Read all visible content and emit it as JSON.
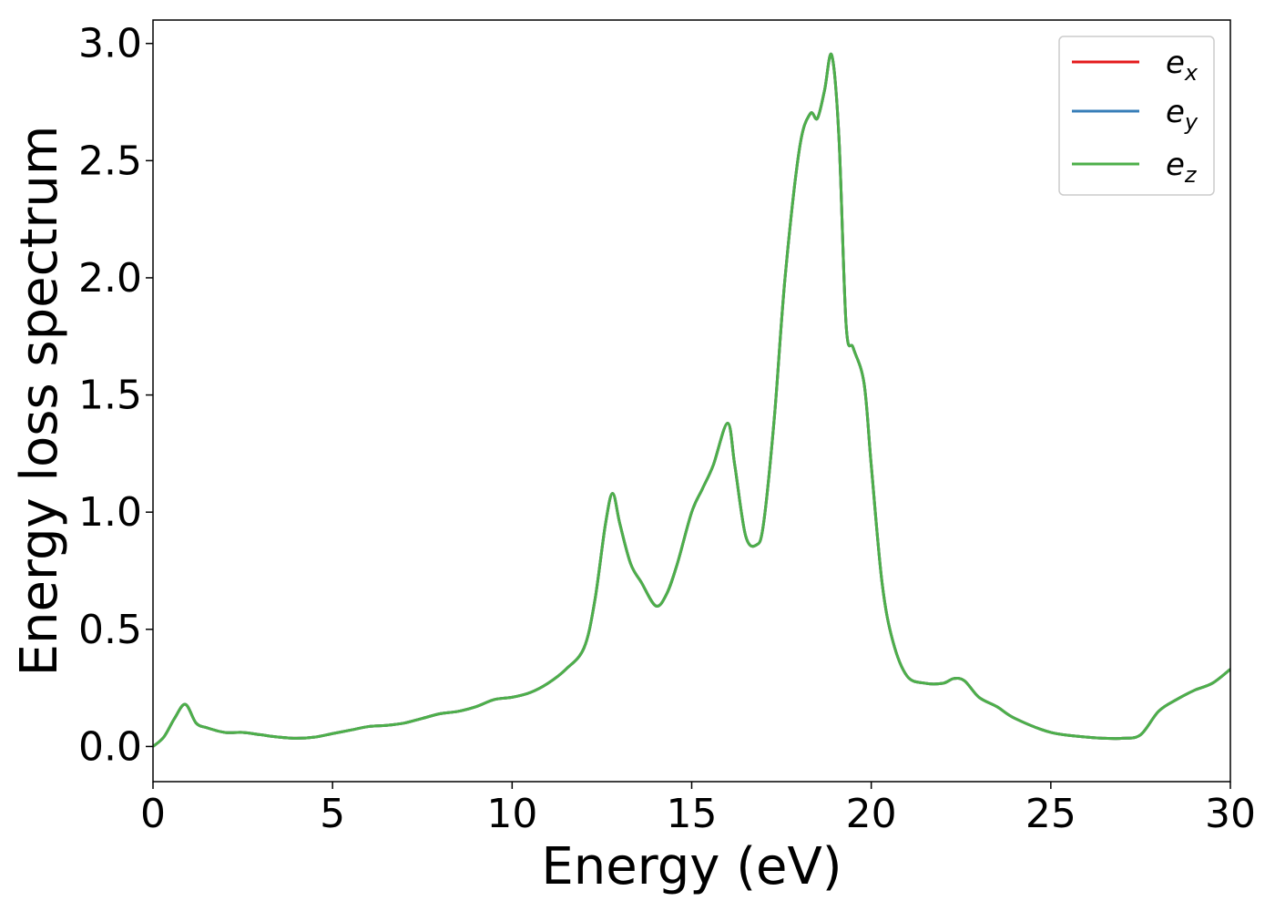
{
  "chart_data": {
    "type": "line",
    "title": "",
    "xlabel": "Energy (eV)",
    "ylabel": "Energy loss spectrum",
    "xlim": [
      0,
      30
    ],
    "ylim": [
      -0.15,
      3.1
    ],
    "xticks": [
      0,
      5,
      10,
      15,
      20,
      25,
      30
    ],
    "xtick_labels": [
      "0",
      "5",
      "10",
      "15",
      "20",
      "25",
      "30"
    ],
    "yticks": [
      0.0,
      0.5,
      1.0,
      1.5,
      2.0,
      2.5,
      3.0
    ],
    "ytick_labels": [
      "0.0",
      "0.5",
      "1.0",
      "1.5",
      "2.0",
      "2.5",
      "3.0"
    ],
    "grid": false,
    "legend_position": "top-right",
    "x": [
      0,
      0.3,
      0.6,
      0.9,
      1.2,
      1.5,
      2.0,
      2.5,
      3.0,
      3.5,
      4.0,
      4.5,
      5.0,
      5.5,
      6.0,
      6.5,
      7.0,
      7.5,
      8.0,
      8.5,
      9.0,
      9.5,
      10.0,
      10.5,
      11.0,
      11.5,
      12.0,
      12.3,
      12.6,
      12.8,
      13.0,
      13.3,
      13.6,
      14.0,
      14.3,
      14.6,
      15.0,
      15.3,
      15.6,
      16.0,
      16.2,
      16.5,
      16.8,
      17.0,
      17.3,
      17.6,
      18.0,
      18.3,
      18.5,
      18.7,
      18.9,
      19.1,
      19.3,
      19.5,
      19.8,
      20.0,
      20.3,
      20.6,
      21.0,
      21.5,
      22.0,
      22.3,
      22.6,
      23.0,
      23.5,
      24.0,
      25.0,
      26.0,
      26.5,
      27.0,
      27.5,
      28.0,
      28.5,
      29.0,
      29.5,
      30.0
    ],
    "series": [
      {
        "name": "e_x",
        "color": "#e41a1c",
        "y": [
          0.0,
          0.04,
          0.12,
          0.18,
          0.1,
          0.08,
          0.06,
          0.06,
          0.05,
          0.04,
          0.035,
          0.04,
          0.055,
          0.07,
          0.085,
          0.09,
          0.1,
          0.12,
          0.14,
          0.15,
          0.17,
          0.2,
          0.21,
          0.23,
          0.27,
          0.33,
          0.42,
          0.62,
          0.95,
          1.08,
          0.95,
          0.78,
          0.7,
          0.6,
          0.65,
          0.78,
          1.0,
          1.1,
          1.2,
          1.38,
          1.2,
          0.9,
          0.86,
          0.95,
          1.4,
          2.0,
          2.55,
          2.7,
          2.68,
          2.8,
          2.95,
          2.6,
          1.8,
          1.7,
          1.55,
          1.2,
          0.7,
          0.45,
          0.3,
          0.27,
          0.27,
          0.29,
          0.28,
          0.21,
          0.17,
          0.12,
          0.06,
          0.04,
          0.035,
          0.035,
          0.05,
          0.15,
          0.2,
          0.24,
          0.27,
          0.33
        ]
      },
      {
        "name": "e_y",
        "color": "#377eb8",
        "y": [
          0.0,
          0.04,
          0.12,
          0.18,
          0.1,
          0.08,
          0.06,
          0.06,
          0.05,
          0.04,
          0.035,
          0.04,
          0.055,
          0.07,
          0.085,
          0.09,
          0.1,
          0.12,
          0.14,
          0.15,
          0.17,
          0.2,
          0.21,
          0.23,
          0.27,
          0.33,
          0.42,
          0.62,
          0.95,
          1.08,
          0.95,
          0.78,
          0.7,
          0.6,
          0.65,
          0.78,
          1.0,
          1.1,
          1.2,
          1.38,
          1.2,
          0.9,
          0.86,
          0.95,
          1.4,
          2.0,
          2.55,
          2.7,
          2.68,
          2.8,
          2.95,
          2.6,
          1.8,
          1.7,
          1.55,
          1.2,
          0.7,
          0.45,
          0.3,
          0.27,
          0.27,
          0.29,
          0.28,
          0.21,
          0.17,
          0.12,
          0.06,
          0.04,
          0.035,
          0.035,
          0.05,
          0.15,
          0.2,
          0.24,
          0.27,
          0.33
        ]
      },
      {
        "name": "e_z",
        "color": "#4daf4a",
        "y": [
          0.0,
          0.04,
          0.12,
          0.18,
          0.1,
          0.08,
          0.06,
          0.06,
          0.05,
          0.04,
          0.035,
          0.04,
          0.055,
          0.07,
          0.085,
          0.09,
          0.1,
          0.12,
          0.14,
          0.15,
          0.17,
          0.2,
          0.21,
          0.23,
          0.27,
          0.33,
          0.42,
          0.62,
          0.95,
          1.08,
          0.95,
          0.78,
          0.7,
          0.6,
          0.65,
          0.78,
          1.0,
          1.1,
          1.2,
          1.38,
          1.2,
          0.9,
          0.86,
          0.95,
          1.4,
          2.0,
          2.55,
          2.7,
          2.68,
          2.8,
          2.95,
          2.6,
          1.8,
          1.7,
          1.55,
          1.2,
          0.7,
          0.45,
          0.3,
          0.27,
          0.27,
          0.29,
          0.28,
          0.21,
          0.17,
          0.12,
          0.06,
          0.04,
          0.035,
          0.035,
          0.05,
          0.15,
          0.2,
          0.24,
          0.27,
          0.33
        ]
      }
    ]
  },
  "legend": {
    "e_x_base": "e",
    "e_x_sub": "x",
    "e_y_base": "e",
    "e_y_sub": "y",
    "e_z_base": "e",
    "e_z_sub": "z"
  }
}
